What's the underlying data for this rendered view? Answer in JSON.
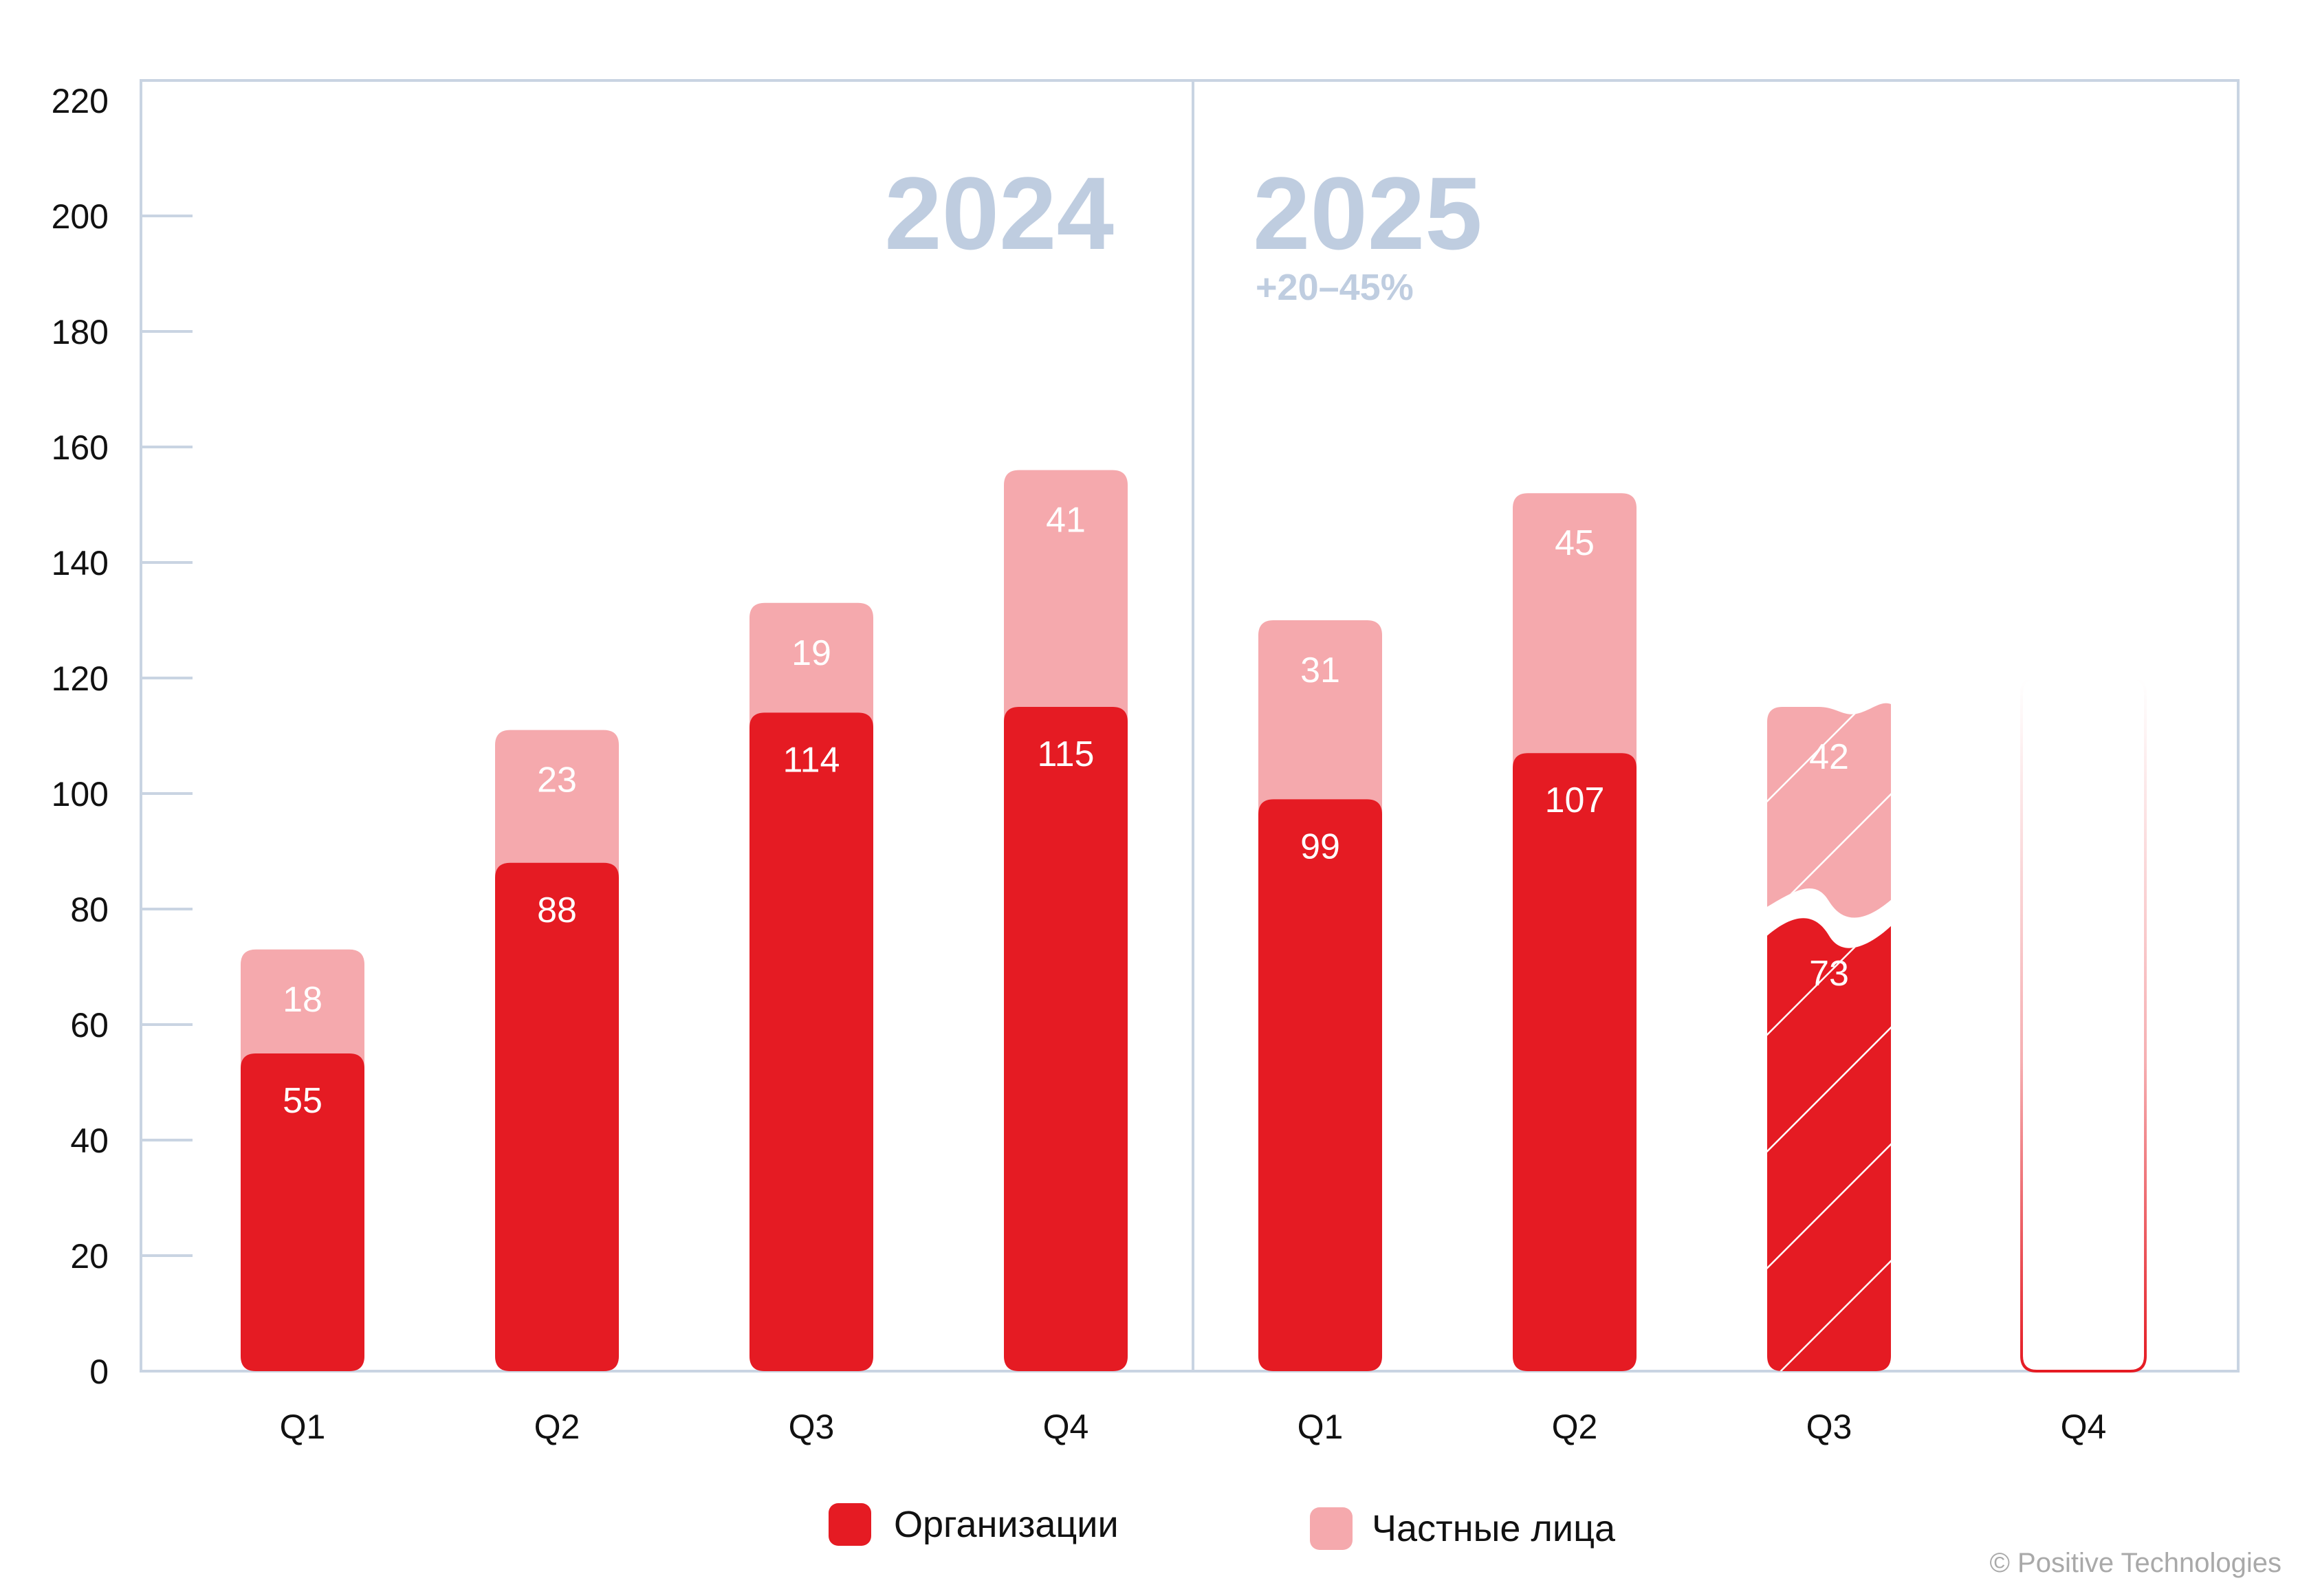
{
  "chart_data": {
    "type": "bar",
    "stacked": true,
    "title": "",
    "xlabel": "",
    "ylabel": "",
    "ylim": [
      0,
      220
    ],
    "yticks": [
      0,
      20,
      40,
      60,
      80,
      100,
      120,
      140,
      160,
      180,
      200,
      220
    ],
    "categories": [
      "Q1",
      "Q2",
      "Q3",
      "Q4",
      "Q1",
      "Q2",
      "Q3",
      "Q4"
    ],
    "groups": [
      {
        "label": "2024",
        "categories": [
          0,
          1,
          2,
          3
        ]
      },
      {
        "label": "2025",
        "categories": [
          4,
          5,
          6,
          7
        ],
        "note": "+20–45%"
      }
    ],
    "series": [
      {
        "name": "Организации",
        "color": "#e51b23",
        "values": [
          55,
          88,
          114,
          115,
          99,
          107,
          73,
          null
        ]
      },
      {
        "name": "Частные лица",
        "color": "#f5a9ad",
        "values": [
          18,
          23,
          19,
          41,
          31,
          45,
          42,
          null
        ]
      }
    ],
    "forecast_category_index": 6,
    "placeholder_category_index": 7,
    "legend_position": "bottom-center",
    "grid": false
  },
  "copyright": "© Positive Technologies"
}
